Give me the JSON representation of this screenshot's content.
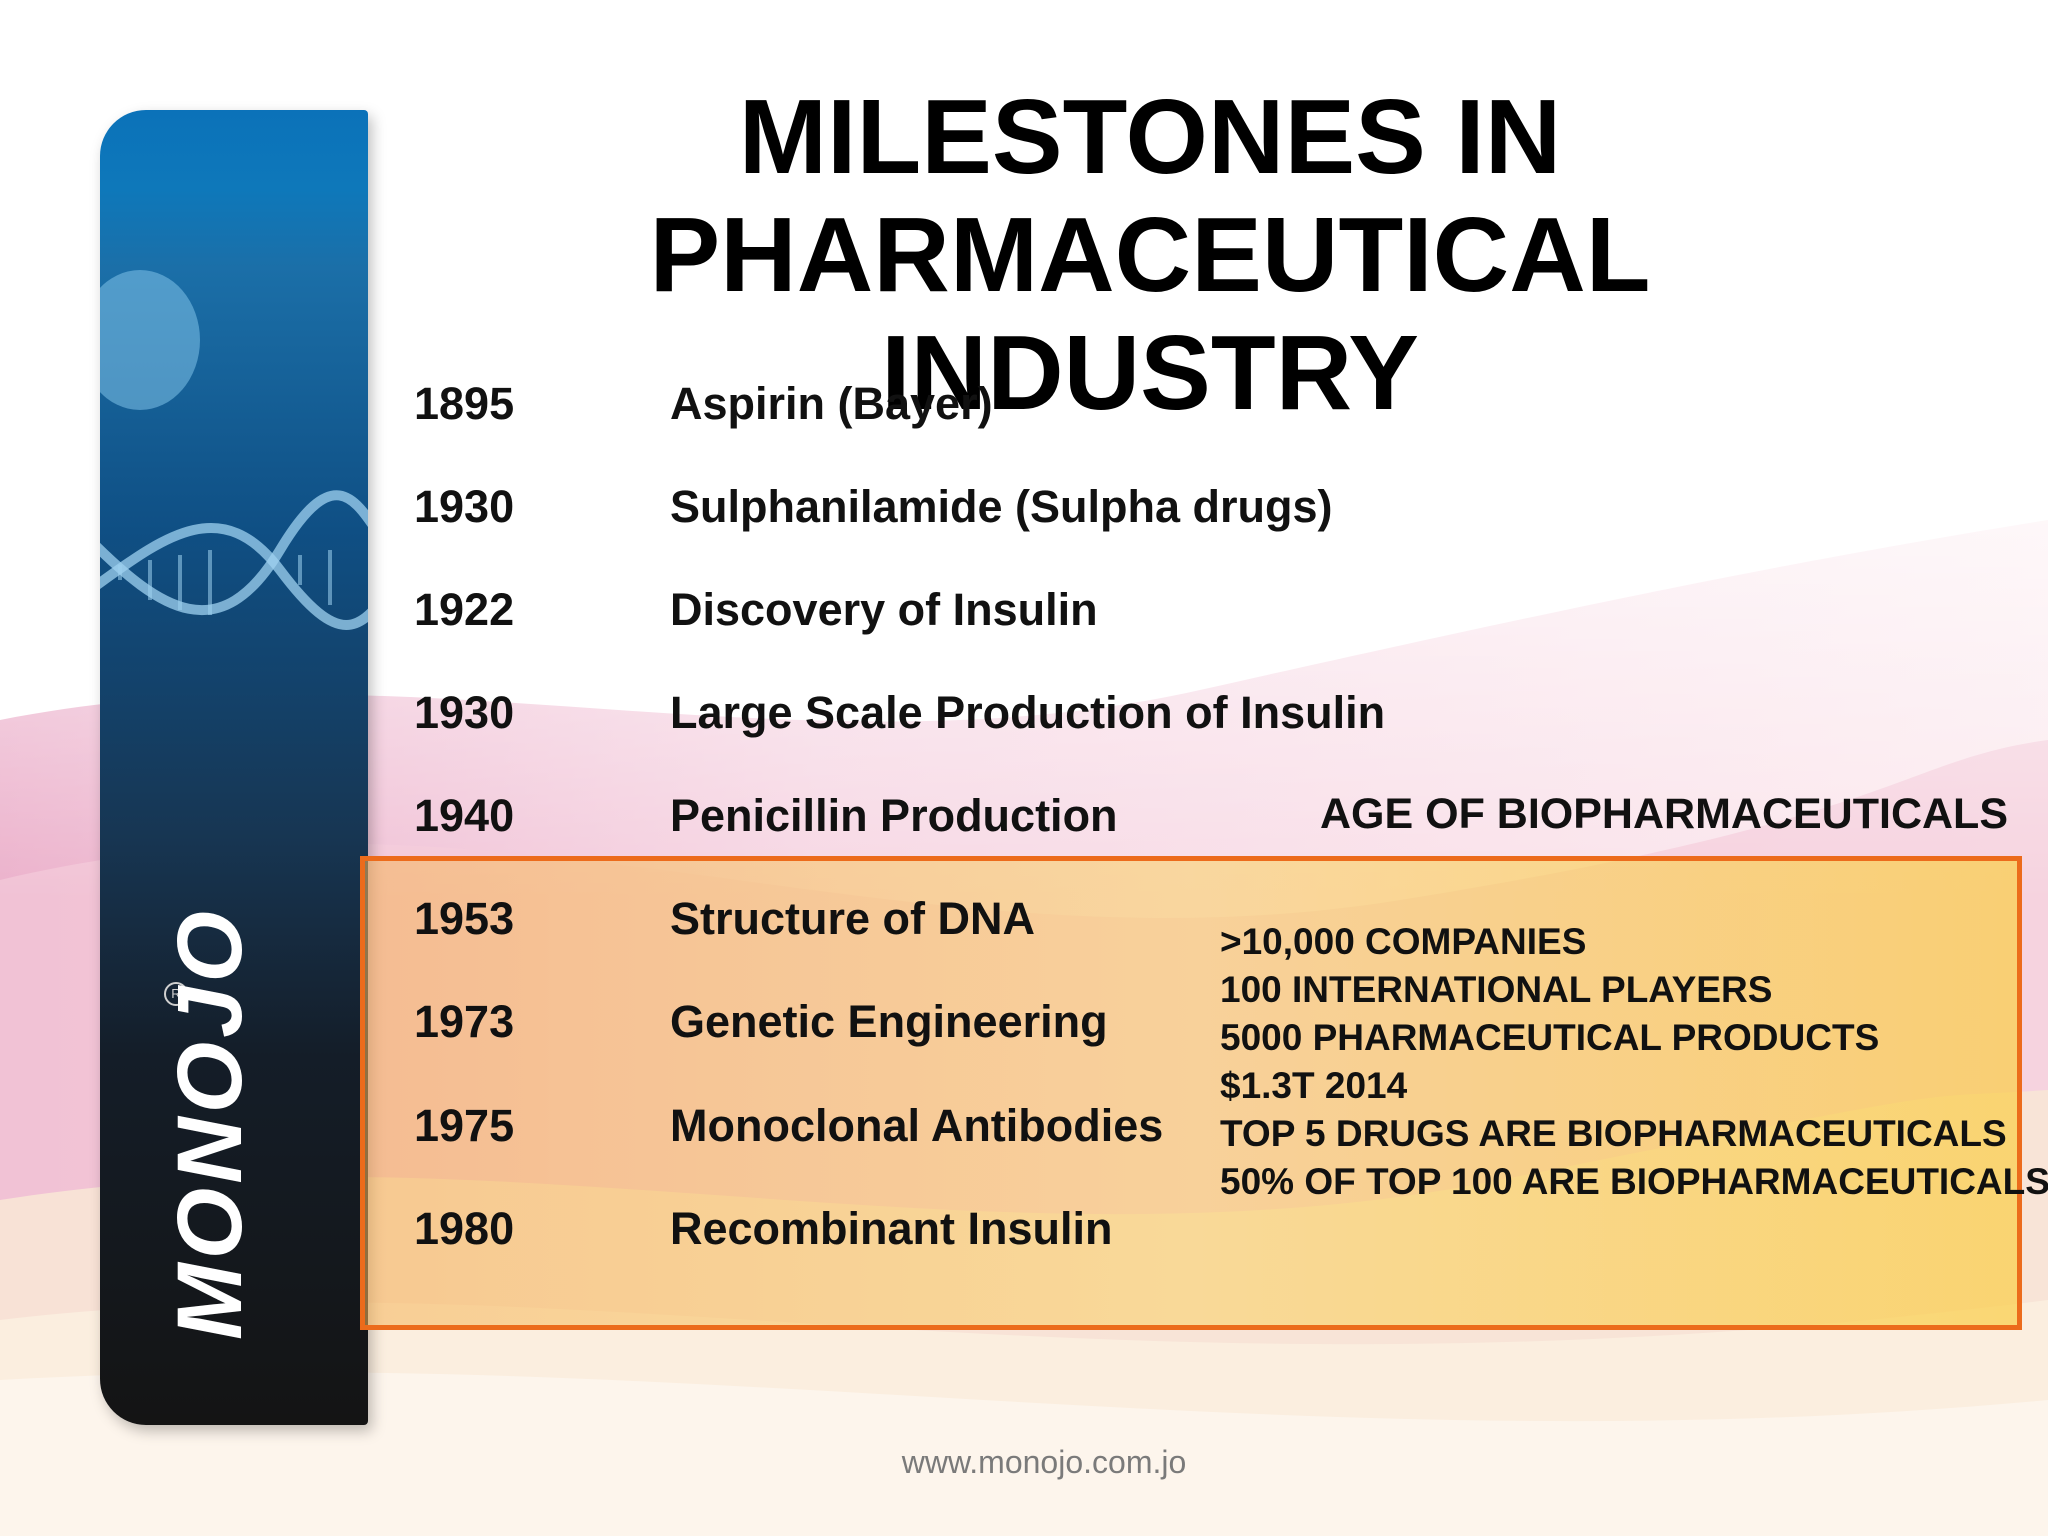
{
  "title": {
    "line1": "MILESTONES IN",
    "line2": "PHARMACEUTICAL INDUSTRY"
  },
  "milestones": [
    {
      "year": "1895",
      "event": "Aspirin (Bayer)"
    },
    {
      "year": "1930",
      "event": "Sulphanilamide (Sulpha drugs)"
    },
    {
      "year": "1922",
      "event": "Discovery of Insulin"
    },
    {
      "year": "1930",
      "event": "Large Scale Production of Insulin"
    },
    {
      "year": "1940",
      "event": "Penicillin Production"
    },
    {
      "year": "1953",
      "event": "Structure of DNA"
    },
    {
      "year": "1973",
      "event": "Genetic Engineering"
    },
    {
      "year": "1975",
      "event": "Monoclonal Antibodies"
    },
    {
      "year": "1980",
      "event": "Recombinant Insulin"
    }
  ],
  "age_label": "AGE OF BIOPHARMACEUTICALS",
  "facts": [
    ">10,000 COMPANIES",
    "100 INTERNATIONAL PLAYERS",
    "5000 PHARMACEUTICAL PRODUCTS",
    "$1.3T 2014",
    "TOP 5 DRUGS ARE BIOPHARMACEUTICALS",
    "50% OF TOP 100 ARE BIOPHARMACEUTICALS"
  ],
  "logo": {
    "text": "MONOJO",
    "reg_mark": "R"
  },
  "footer": "www.monojo.com.jo",
  "colors": {
    "highlight_border": "#ec6b1b",
    "sidebar_blue": "#0e78ba",
    "sidebar_dark": "#141414"
  }
}
